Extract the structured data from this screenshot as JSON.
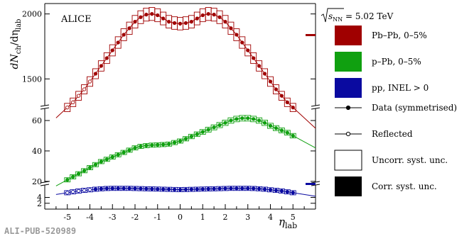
{
  "figure": {
    "experiment_label": "ALICE",
    "publication_id": "ALI-PUB-520989",
    "sqrt_s_label": "√s",
    "sqrt_s_subscript": "NN",
    "sqrt_s_value": " = 5.02 TeV"
  },
  "axes": {
    "y_label_main": "dN",
    "y_label_sub1": "ch",
    "y_label_mid": "/dη",
    "y_label_sub2": "lab",
    "x_label_main": "η",
    "x_label_sub": "lab"
  },
  "legend": [
    {
      "label": "Pb–Pb, 0–5%",
      "kind": "fill",
      "color": "#a00000"
    },
    {
      "label": "p–Pb, 0–5%",
      "kind": "fill",
      "color": "#10a010"
    },
    {
      "label": "pp, INEL > 0",
      "kind": "fill",
      "color": "#0a0aa0"
    },
    {
      "label": "Data (symmetrised)",
      "kind": "filled-marker"
    },
    {
      "label": "Reflected",
      "kind": "open-marker"
    },
    {
      "label": "Uncorr. syst. unc.",
      "kind": "open-box"
    },
    {
      "label": "Corr. syst. unc.",
      "kind": "black-box"
    }
  ],
  "colors": {
    "pbpb": "#a00000",
    "ppb": "#10a010",
    "pp": "#0a0aa0"
  },
  "chart_data": {
    "type": "scatter",
    "x_label": "η_lab",
    "y_label": "dN_ch/dη_lab",
    "xlim": [
      -6,
      6
    ],
    "x_ticks": [
      -5,
      -4,
      -3,
      -2,
      -1,
      0,
      1,
      2,
      3,
      4,
      5
    ],
    "panels": [
      {
        "name": "Pb–Pb, 0–5%",
        "ylim": [
          1300,
          2080
        ],
        "y_ticks": [
          1500,
          2000
        ],
        "series": [
          {
            "name": "Pb–Pb, 0–5%",
            "x": [
              -5.0,
              -4.75,
              -4.5,
              -4.25,
              -4.0,
              -3.75,
              -3.5,
              -3.25,
              -3.0,
              -2.75,
              -2.5,
              -2.25,
              -2.0,
              -1.75,
              -1.5,
              -1.25,
              -1.0,
              -0.75,
              -0.5,
              -0.25,
              0.0,
              0.25,
              0.5,
              0.75,
              1.0,
              1.25,
              1.5,
              1.75,
              2.0,
              2.25,
              2.5,
              2.75,
              3.0,
              3.25,
              3.5,
              3.75,
              4.0,
              4.25,
              4.5,
              4.75,
              5.0
            ],
            "y": [
              1280,
              1320,
              1370,
              1420,
              1480,
              1540,
              1600,
              1660,
              1720,
              1780,
              1840,
              1890,
              1940,
              1975,
              1995,
              2000,
              1990,
              1965,
              1940,
              1930,
              1925,
              1930,
              1940,
              1965,
              1990,
              2000,
              1995,
              1975,
              1940,
              1890,
              1840,
              1780,
              1720,
              1660,
              1600,
              1540,
              1480,
              1420,
              1370,
              1320,
              1280
            ],
            "reflected_x": [
              -5.0,
              -4.75,
              -4.5,
              -4.25,
              -4.0
            ],
            "reflected_y": [
              1280,
              1320,
              1370,
              1420,
              1480
            ]
          }
        ]
      },
      {
        "name": "p–Pb, 0–5%",
        "ylim": [
          19,
          67
        ],
        "y_ticks": [
          20,
          40,
          60
        ],
        "series": [
          {
            "name": "p–Pb, 0–5%",
            "x": [
              -5.0,
              -4.75,
              -4.5,
              -4.25,
              -4.0,
              -3.75,
              -3.5,
              -3.25,
              -3.0,
              -2.75,
              -2.5,
              -2.25,
              -2.0,
              -1.75,
              -1.5,
              -1.25,
              -1.0,
              -0.75,
              -0.5,
              -0.25,
              0.0,
              0.25,
              0.5,
              0.75,
              1.0,
              1.25,
              1.5,
              1.75,
              2.0,
              2.25,
              2.5,
              2.75,
              3.0,
              3.25,
              3.5,
              3.75,
              4.0,
              4.25,
              4.5,
              4.75,
              5.0
            ],
            "y": [
              21,
              23,
              25,
              27,
              29,
              31,
              33,
              34.5,
              36,
              37.5,
              39,
              40.5,
              42,
              43,
              43.5,
              43.8,
              44,
              44.2,
              44.5,
              45.5,
              46.5,
              48,
              49.5,
              51,
              52.5,
              54,
              55.5,
              57,
              58.5,
              60,
              61,
              61.5,
              61.5,
              61,
              60,
              58.5,
              56.5,
              55,
              53.5,
              52,
              50
            ]
          }
        ]
      },
      {
        "name": "pp, INEL > 0",
        "ylim": [
          0,
          8
        ],
        "y_ticks": [
          2,
          4
        ],
        "series": [
          {
            "name": "pp, INEL > 0",
            "x": [
              -5.0,
              -4.75,
              -4.5,
              -4.25,
              -4.0,
              -3.75,
              -3.5,
              -3.25,
              -3.0,
              -2.75,
              -2.5,
              -2.25,
              -2.0,
              -1.75,
              -1.5,
              -1.25,
              -1.0,
              -0.75,
              -0.5,
              -0.25,
              0.0,
              0.25,
              0.5,
              0.75,
              1.0,
              1.25,
              1.5,
              1.75,
              2.0,
              2.25,
              2.5,
              2.75,
              3.0,
              3.25,
              3.5,
              3.75,
              4.0,
              4.25,
              4.5,
              4.75,
              5.0
            ],
            "y": [
              5.6,
              5.9,
              6.2,
              6.4,
              6.6,
              6.8,
              6.95,
              7.05,
              7.1,
              7.1,
              7.1,
              7.1,
              7.05,
              7.0,
              6.95,
              6.9,
              6.85,
              6.8,
              6.75,
              6.7,
              6.65,
              6.7,
              6.75,
              6.8,
              6.85,
              6.9,
              6.95,
              7.0,
              7.05,
              7.1,
              7.1,
              7.1,
              7.1,
              7.05,
              6.95,
              6.8,
              6.6,
              6.4,
              6.2,
              5.9,
              5.6
            ],
            "reflected_x": [
              -5.0,
              -4.75,
              -4.5,
              -4.25,
              -4.0
            ],
            "reflected_y": [
              5.6,
              5.9,
              6.2,
              6.4,
              6.6
            ]
          }
        ]
      }
    ]
  }
}
